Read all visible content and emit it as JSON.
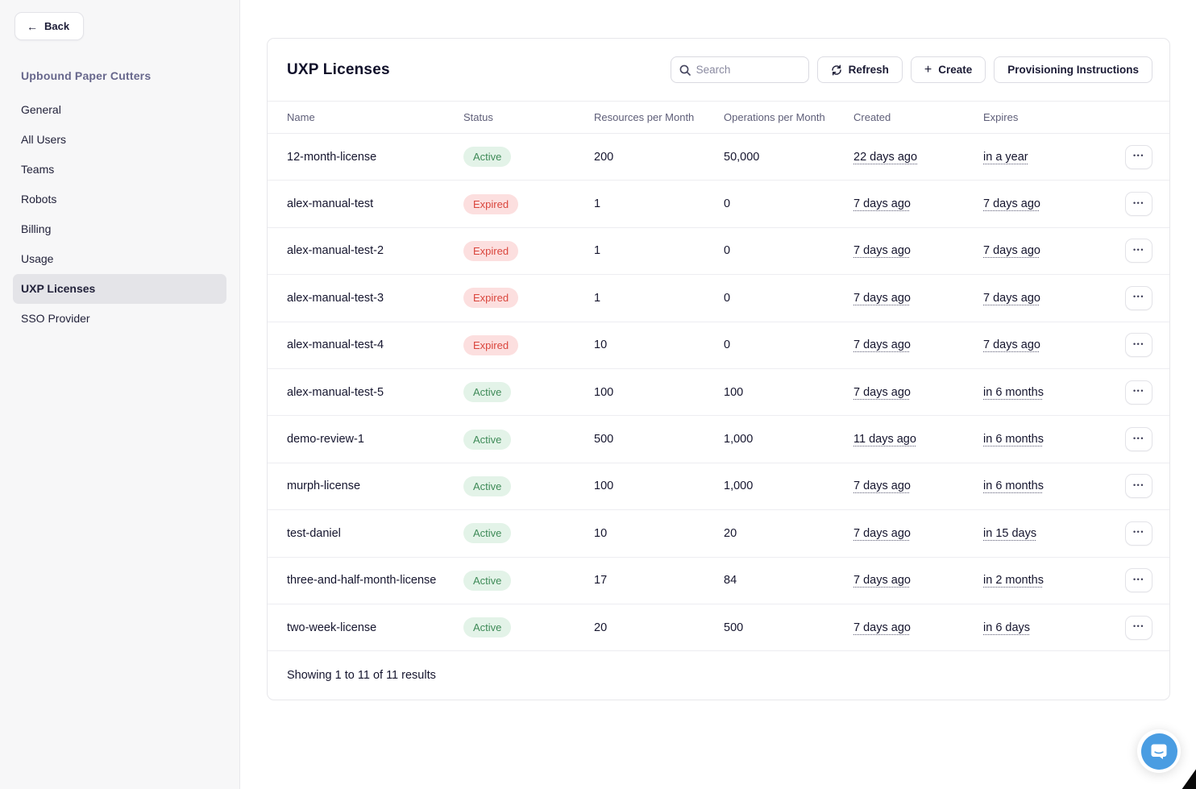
{
  "sidebar": {
    "back_label": "Back",
    "org_name": "Upbound Paper Cutters",
    "items": [
      {
        "label": "General",
        "active": false
      },
      {
        "label": "All Users",
        "active": false
      },
      {
        "label": "Teams",
        "active": false
      },
      {
        "label": "Robots",
        "active": false
      },
      {
        "label": "Billing",
        "active": false
      },
      {
        "label": "Usage",
        "active": false
      },
      {
        "label": "UXP Licenses",
        "active": true
      },
      {
        "label": "SSO Provider",
        "active": false
      }
    ]
  },
  "header": {
    "title": "UXP Licenses",
    "search_placeholder": "Search",
    "refresh_label": "Refresh",
    "create_label": "Create",
    "provisioning_label": "Provisioning Instructions"
  },
  "table": {
    "columns": [
      "Name",
      "Status",
      "Resources per Month",
      "Operations per Month",
      "Created",
      "Expires"
    ],
    "rows": [
      {
        "name": "12-month-license",
        "status": "Active",
        "resources": "200",
        "operations": "50,000",
        "created": "22 days ago",
        "expires": "in a year"
      },
      {
        "name": "alex-manual-test",
        "status": "Expired",
        "resources": "1",
        "operations": "0",
        "created": "7 days ago",
        "expires": "7 days ago"
      },
      {
        "name": "alex-manual-test-2",
        "status": "Expired",
        "resources": "1",
        "operations": "0",
        "created": "7 days ago",
        "expires": "7 days ago"
      },
      {
        "name": "alex-manual-test-3",
        "status": "Expired",
        "resources": "1",
        "operations": "0",
        "created": "7 days ago",
        "expires": "7 days ago"
      },
      {
        "name": "alex-manual-test-4",
        "status": "Expired",
        "resources": "10",
        "operations": "0",
        "created": "7 days ago",
        "expires": "7 days ago"
      },
      {
        "name": "alex-manual-test-5",
        "status": "Active",
        "resources": "100",
        "operations": "100",
        "created": "7 days ago",
        "expires": "in 6 months"
      },
      {
        "name": "demo-review-1",
        "status": "Active",
        "resources": "500",
        "operations": "1,000",
        "created": "11 days ago",
        "expires": "in 6 months"
      },
      {
        "name": "murph-license",
        "status": "Active",
        "resources": "100",
        "operations": "1,000",
        "created": "7 days ago",
        "expires": "in 6 months"
      },
      {
        "name": "test-daniel",
        "status": "Active",
        "resources": "10",
        "operations": "20",
        "created": "7 days ago",
        "expires": "in 15 days"
      },
      {
        "name": "three-and-half-month-license",
        "status": "Active",
        "resources": "17",
        "operations": "84",
        "created": "7 days ago",
        "expires": "in 2 months"
      },
      {
        "name": "two-week-license",
        "status": "Active",
        "resources": "20",
        "operations": "500",
        "created": "7 days ago",
        "expires": "in 6 days"
      }
    ],
    "footer": "Showing 1 to 11 of 11 results"
  },
  "icons": {
    "back": "arrow-left",
    "search": "magnifier",
    "refresh": "circular-arrows",
    "create": "plus",
    "row_menu": "ellipsis",
    "chat": "chat-bubble"
  },
  "colors": {
    "active_bg": "#e3f3e8",
    "active_text": "#3f8b58",
    "expired_bg": "#fcdfdf",
    "expired_text": "#da463d",
    "accent_blue": "#4a9de2",
    "sidebar_bg": "#f7f7f8",
    "selected_item_bg": "#e4e4e8",
    "org_name_color": "#67678c"
  }
}
